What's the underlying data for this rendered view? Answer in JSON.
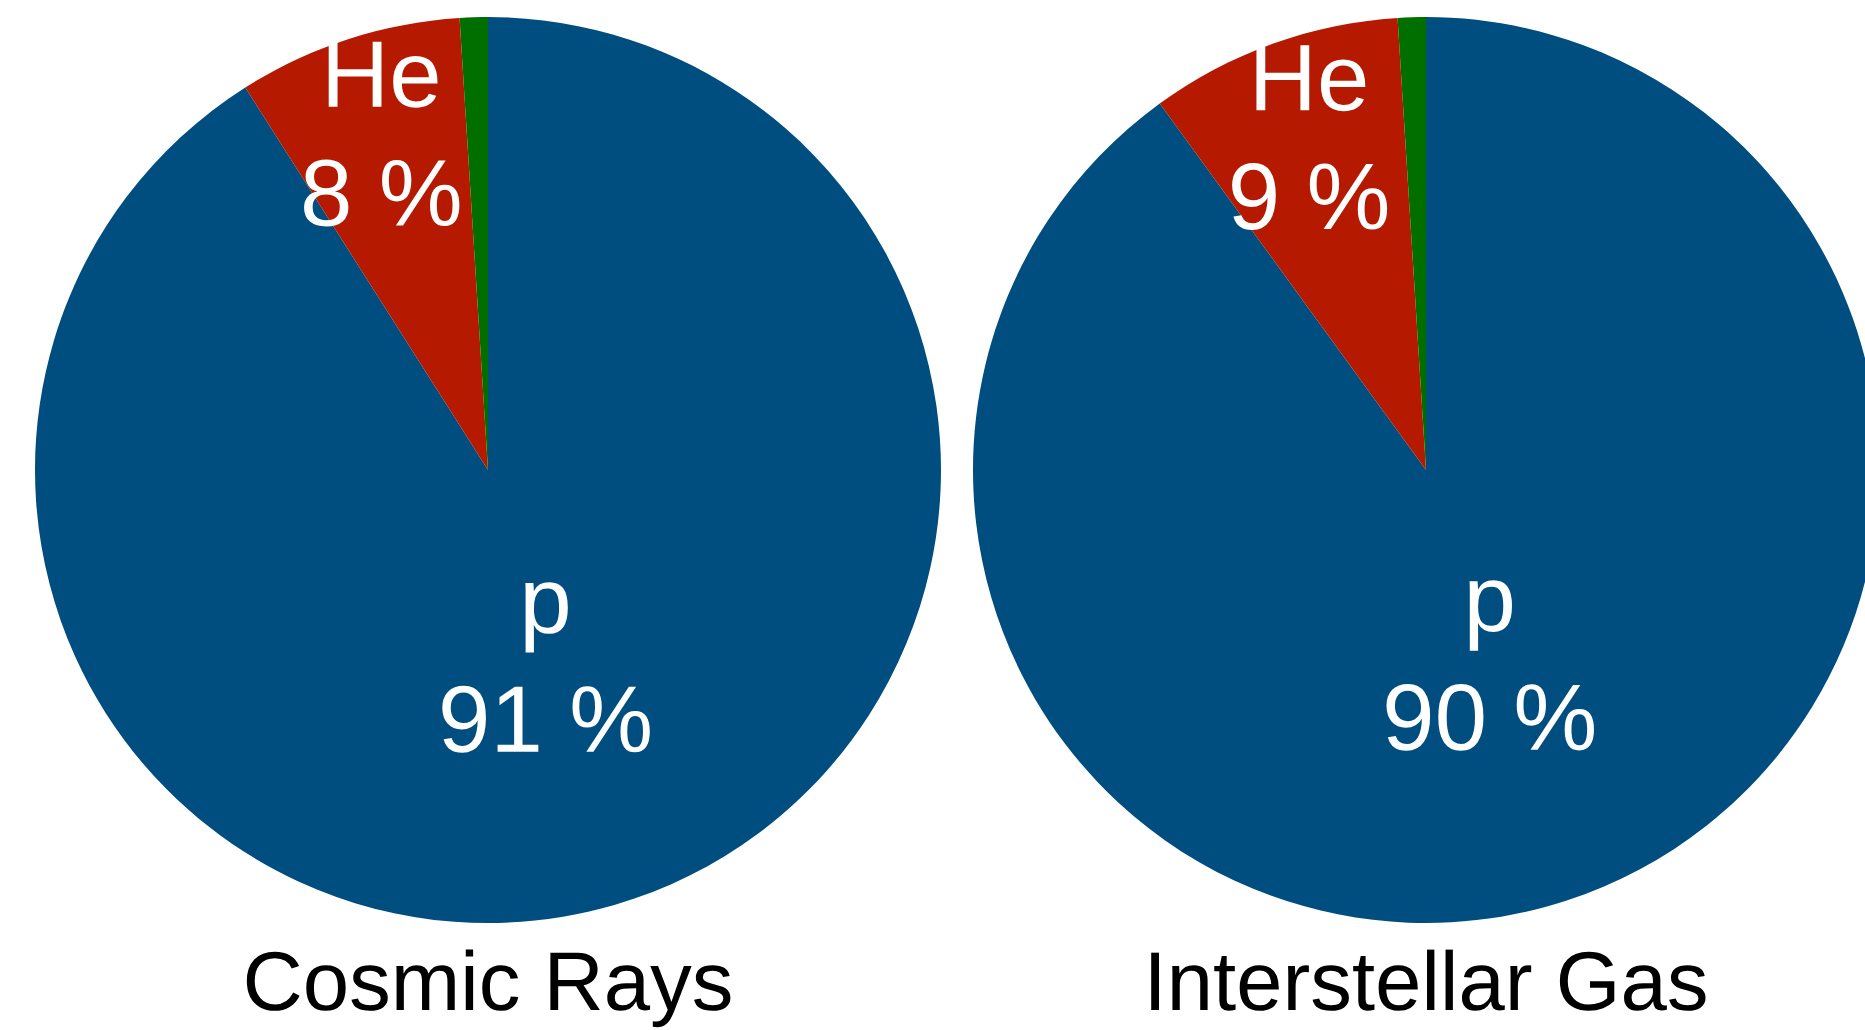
{
  "chart_data": [
    {
      "type": "pie",
      "title": "Cosmic Rays",
      "categories": [
        "p",
        "He",
        null
      ],
      "values": [
        91,
        8,
        1
      ],
      "colors": [
        "#004e7f",
        "#b51a00",
        "#006f00"
      ],
      "value_labels": [
        "91 %",
        "8 %",
        null
      ]
    },
    {
      "type": "pie",
      "title": "Interstellar Gas",
      "categories": [
        "p",
        "He",
        null
      ],
      "values": [
        90,
        9,
        1
      ],
      "colors": [
        "#004e7f",
        "#b51a00",
        "#006f00"
      ],
      "value_labels": [
        "90 %",
        "9 %",
        null
      ]
    }
  ]
}
